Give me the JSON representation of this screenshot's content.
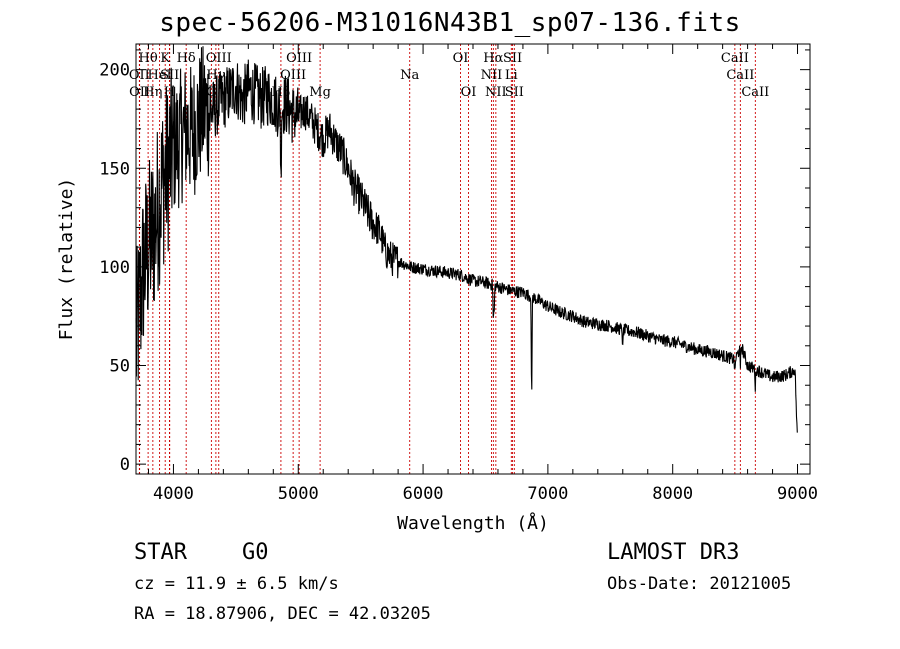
{
  "title": "spec-56206-M31016N43B1_sp07-136.fits",
  "info": {
    "class": "STAR",
    "subclass": "G0",
    "survey": "LAMOST DR3",
    "cz": "cz = 11.9 ± 6.5 km/s",
    "obs_date": "Obs-Date: 20121005",
    "radec": "RA =  18.87906, DEC =  42.03205"
  },
  "chart_data": {
    "type": "line",
    "title": "spec-56206-M31016N43B1_sp07-136.fits",
    "xlabel": "Wavelength (Å)",
    "ylabel": "Flux (relative)",
    "xlim": [
      3700,
      9100
    ],
    "ylim": [
      -5,
      213
    ],
    "xticks": [
      4000,
      5000,
      6000,
      7000,
      8000,
      9000
    ],
    "yticks": [
      0,
      50,
      100,
      150,
      200
    ],
    "line_color": "#000000",
    "marker_color": "#cc0000",
    "anchors": [
      [
        3700,
        60
      ],
      [
        3760,
        100
      ],
      [
        3800,
        110
      ],
      [
        3850,
        120
      ],
      [
        3900,
        140
      ],
      [
        3950,
        150
      ],
      [
        4000,
        160
      ],
      [
        4050,
        165
      ],
      [
        4100,
        170
      ],
      [
        4150,
        168
      ],
      [
        4200,
        175
      ],
      [
        4250,
        180
      ],
      [
        4300,
        178
      ],
      [
        4350,
        182
      ],
      [
        4400,
        185
      ],
      [
        4450,
        188
      ],
      [
        4500,
        192
      ],
      [
        4550,
        185
      ],
      [
        4600,
        190
      ],
      [
        4650,
        188
      ],
      [
        4700,
        185
      ],
      [
        4750,
        187
      ],
      [
        4800,
        185
      ],
      [
        4850,
        180
      ],
      [
        4900,
        183
      ],
      [
        4950,
        178
      ],
      [
        5000,
        176
      ],
      [
        5050,
        180
      ],
      [
        5100,
        175
      ],
      [
        5150,
        170
      ],
      [
        5200,
        165
      ],
      [
        5250,
        170
      ],
      [
        5300,
        163
      ],
      [
        5350,
        158
      ],
      [
        5400,
        150
      ],
      [
        5450,
        140
      ],
      [
        5500,
        135
      ],
      [
        5550,
        128
      ],
      [
        5600,
        122
      ],
      [
        5650,
        118
      ],
      [
        5700,
        108
      ],
      [
        5750,
        104
      ],
      [
        5800,
        103
      ],
      [
        5900,
        100
      ],
      [
        6000,
        99
      ],
      [
        6100,
        98
      ],
      [
        6200,
        97
      ],
      [
        6300,
        96
      ],
      [
        6400,
        93
      ],
      [
        6500,
        92
      ],
      [
        6600,
        90
      ],
      [
        6700,
        88
      ],
      [
        6800,
        87
      ],
      [
        6900,
        84
      ],
      [
        7000,
        80
      ],
      [
        7100,
        77
      ],
      [
        7200,
        75
      ],
      [
        7300,
        72
      ],
      [
        7400,
        71
      ],
      [
        7500,
        70
      ],
      [
        7600,
        68
      ],
      [
        7700,
        67
      ],
      [
        7800,
        65
      ],
      [
        7900,
        63
      ],
      [
        8000,
        62
      ],
      [
        8100,
        60
      ],
      [
        8200,
        58
      ],
      [
        8300,
        57
      ],
      [
        8400,
        55
      ],
      [
        8500,
        53
      ],
      [
        8550,
        60
      ],
      [
        8600,
        50
      ],
      [
        8700,
        47
      ],
      [
        8800,
        44
      ],
      [
        8900,
        45
      ],
      [
        8980,
        48
      ],
      [
        9000,
        10
      ]
    ],
    "absorption_features": [
      {
        "x": 6563,
        "depth": 20
      },
      {
        "x": 6570,
        "depth": 15
      },
      {
        "x": 6870,
        "depth": 60
      },
      {
        "x": 7600,
        "depth": 10
      },
      {
        "x": 8498,
        "depth": 8
      },
      {
        "x": 8542,
        "depth": 12
      },
      {
        "x": 8662,
        "depth": 10
      },
      {
        "x": 4861,
        "depth": 40
      }
    ],
    "lines": [
      {
        "x": 3797,
        "label": "Hθ",
        "row": 1
      },
      {
        "x": 3727,
        "label": "OII",
        "row": 2
      },
      {
        "x": 3729,
        "label": "OII",
        "row": 3
      },
      {
        "x": 3835,
        "label": "Hη",
        "row": 3
      },
      {
        "x": 3889,
        "label": "HeI",
        "row": 2
      },
      {
        "x": 3934,
        "label": "K",
        "row": 1
      },
      {
        "x": 3968,
        "label": "H",
        "row": 3
      },
      {
        "x": 3970,
        "label": "SII",
        "row": 2
      },
      {
        "x": 4102,
        "label": "Hδ",
        "row": 1
      },
      {
        "x": 4304,
        "label": "G",
        "row": 3
      },
      {
        "x": 4340,
        "label": "Hγ",
        "row": 2
      },
      {
        "x": 4363,
        "label": "OIII",
        "row": 1
      },
      {
        "x": 4861,
        "label": "Hβ",
        "row": 3
      },
      {
        "x": 4959,
        "label": "OIII",
        "row": 2
      },
      {
        "x": 5007,
        "label": "OIII",
        "row": 1
      },
      {
        "x": 5175,
        "label": "Mg",
        "row": 3
      },
      {
        "x": 5893,
        "label": "Na",
        "row": 2
      },
      {
        "x": 6300,
        "label": "OI",
        "row": 1
      },
      {
        "x": 6364,
        "label": "OI",
        "row": 3
      },
      {
        "x": 6548,
        "label": "NII",
        "row": 2
      },
      {
        "x": 6563,
        "label": "Hα",
        "row": 1
      },
      {
        "x": 6583,
        "label": "NII",
        "row": 3
      },
      {
        "x": 6707,
        "label": "Li",
        "row": 2
      },
      {
        "x": 6717,
        "label": "SII",
        "row": 1
      },
      {
        "x": 6731,
        "label": "SII",
        "row": 3
      },
      {
        "x": 8498,
        "label": "CaII",
        "row": 1
      },
      {
        "x": 8542,
        "label": "CaII",
        "row": 2
      },
      {
        "x": 8662,
        "label": "CaII",
        "row": 3
      }
    ]
  }
}
